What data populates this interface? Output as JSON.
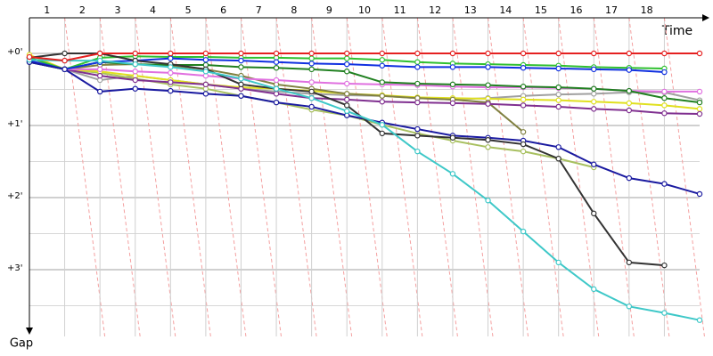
{
  "chart_data": {
    "type": "line",
    "x_label": "Time",
    "y_label": "Gap",
    "x": [
      0,
      1,
      2,
      3,
      4,
      5,
      6,
      7,
      8,
      9,
      10,
      11,
      12,
      13,
      14,
      15,
      16,
      17,
      18,
      19
    ],
    "xlim": [
      0,
      19
    ],
    "xticks": [
      1,
      2,
      3,
      4,
      5,
      6,
      7,
      8,
      9,
      10,
      11,
      12,
      13,
      14,
      15,
      16,
      17,
      18
    ],
    "ylim": [
      0,
      3.9
    ],
    "yticks": [
      {
        "value": 0,
        "label": "+0'"
      },
      {
        "value": 1,
        "label": "+1'"
      },
      {
        "value": 2,
        "label": "+2'"
      },
      {
        "value": 3,
        "label": "+3'"
      }
    ],
    "grid": true,
    "series": [
      {
        "color": "#a0a0a0",
        "values": [
          0.1,
          0.22,
          0.37,
          0.31,
          0.37,
          0.43,
          0.49,
          0.53,
          0.56,
          0.58,
          0.59,
          0.62,
          0.64,
          0.62,
          0.59,
          0.57,
          0.56,
          0.54,
          0.54,
          0.65
        ]
      },
      {
        "color": "#a8c060",
        "values": [
          0.06,
          0.22,
          0.27,
          0.35,
          0.43,
          0.49,
          0.59,
          0.68,
          0.78,
          0.86,
          0.99,
          1.11,
          1.21,
          1.3,
          1.36,
          1.46,
          1.58,
          null,
          null,
          null
        ]
      },
      {
        "color": "#e0e020",
        "values": [
          0.02,
          0.22,
          0.25,
          0.31,
          0.37,
          0.43,
          0.47,
          0.49,
          0.52,
          0.56,
          0.58,
          0.61,
          0.62,
          0.63,
          0.64,
          0.65,
          0.67,
          0.69,
          0.72,
          0.77
        ]
      },
      {
        "color": "#808040",
        "values": [
          0.06,
          0.22,
          0.16,
          0.15,
          0.17,
          0.22,
          0.31,
          0.43,
          0.49,
          0.56,
          0.59,
          0.62,
          0.64,
          0.68,
          1.09,
          null,
          null,
          null,
          null,
          null
        ]
      },
      {
        "color": "#803090",
        "values": [
          0.12,
          0.22,
          0.31,
          0.37,
          0.4,
          0.43,
          0.49,
          0.56,
          0.62,
          0.64,
          0.67,
          0.68,
          0.69,
          0.7,
          0.72,
          0.74,
          0.77,
          0.79,
          0.83,
          0.84
        ]
      },
      {
        "color": "#e070e0",
        "values": [
          0.06,
          0.22,
          0.22,
          0.25,
          0.27,
          0.31,
          0.35,
          0.37,
          0.4,
          0.42,
          0.43,
          0.44,
          0.46,
          0.47,
          0.47,
          0.48,
          0.49,
          0.52,
          0.53,
          0.53
        ]
      },
      {
        "color": "#208020",
        "values": [
          0.12,
          0.22,
          0.12,
          0.15,
          0.16,
          0.16,
          0.19,
          0.2,
          0.22,
          0.25,
          0.4,
          0.42,
          0.43,
          0.44,
          0.46,
          0.47,
          0.49,
          0.52,
          0.62,
          0.68
        ]
      },
      {
        "color": "#30c030",
        "values": [
          0.06,
          0.22,
          0.06,
          0.04,
          0.05,
          0.05,
          0.06,
          0.06,
          0.07,
          0.07,
          0.09,
          0.12,
          0.14,
          0.15,
          0.16,
          0.17,
          0.19,
          0.2,
          0.21,
          null
        ]
      },
      {
        "color": "#1030e0",
        "values": [
          0.1,
          0.22,
          0.12,
          0.1,
          0.07,
          0.09,
          0.1,
          0.12,
          0.14,
          0.15,
          0.17,
          0.19,
          0.19,
          0.19,
          0.2,
          0.21,
          0.22,
          0.23,
          0.26,
          null
        ]
      },
      {
        "color": "#1a1aa0",
        "values": [
          0.12,
          0.22,
          0.53,
          0.49,
          0.52,
          0.56,
          0.59,
          0.68,
          0.74,
          0.86,
          0.96,
          1.05,
          1.14,
          1.17,
          1.21,
          1.3,
          1.54,
          1.73,
          1.81,
          1.95
        ]
      },
      {
        "color": "#333333",
        "values": [
          0.06,
          0,
          0,
          0.1,
          0.15,
          0.22,
          0.43,
          0.49,
          0.53,
          0.72,
          1.11,
          1.14,
          1.17,
          1.2,
          1.26,
          1.46,
          2.22,
          2.9,
          2.94,
          null
        ]
      },
      {
        "color": "#3ec8c8",
        "values": [
          0.09,
          0.1,
          0.1,
          0.15,
          0.19,
          0.25,
          0.35,
          0.49,
          0.62,
          0.8,
          0.99,
          1.36,
          1.67,
          2.04,
          2.47,
          2.9,
          3.27,
          3.51,
          3.6,
          3.7
        ]
      },
      {
        "color": "#e52020",
        "values": [
          0.05,
          0.1,
          0,
          0,
          0,
          0,
          0,
          0,
          0,
          0,
          0,
          0,
          0,
          0,
          0,
          0,
          0,
          0,
          0,
          0
        ]
      }
    ]
  }
}
